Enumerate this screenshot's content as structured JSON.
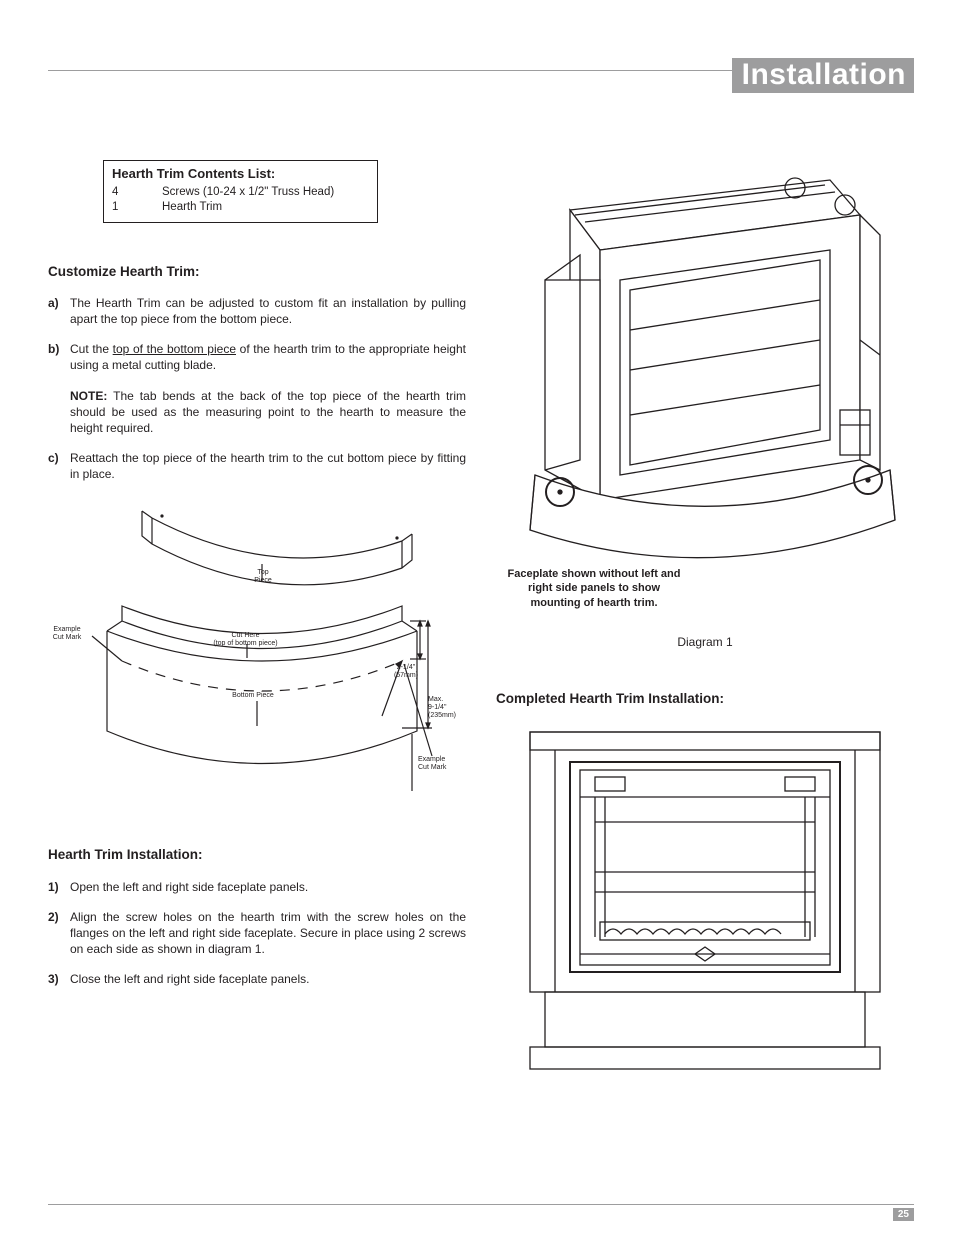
{
  "header": {
    "banner": "Installation",
    "page_number": "25"
  },
  "contents_box": {
    "title": "Hearth Trim Contents List:",
    "rows": [
      {
        "qty": "4",
        "desc": "Screws (10-24 x 1/2\" Truss Head)"
      },
      {
        "qty": "1",
        "desc": "Hearth Trim"
      }
    ]
  },
  "customize": {
    "heading": "Customize Hearth Trim:",
    "items": {
      "a": "The Hearth Trim can be adjusted to custom fit an installation by pulling apart the top piece from the bottom piece.",
      "b_pre": "Cut the ",
      "b_underline": "top of the bottom piece",
      "b_post": " of the hearth trim to the appropriate height using a metal cutting blade.",
      "note_label": "NOTE:",
      "note_text": " The tab bends at the back of the top piece of the hearth trim should be used as the measuring point to the hearth to measure the height required.",
      "c": "Reattach the top piece of the hearth trim to the cut bottom piece by fitting in place."
    }
  },
  "diagram_left": {
    "labels": {
      "top_piece": "Top\nPiece",
      "example_cut_mark_left": "Example\nCut Mark",
      "cut_here": "Cut Here\n(top of bottom piece)",
      "bottom_piece": "Bottom Piece",
      "dim_small": "2-1/4\"\n(57mm)",
      "dim_max": "Max.\n9-1/4\"\n(235mm)",
      "example_cut_mark_right": "Example\nCut Mark"
    }
  },
  "install": {
    "heading": "Hearth Trim Installation:",
    "steps": {
      "1": "Open the left and right side faceplate panels.",
      "2": "Align the screw holes on the hearth trim with the screw holes on the flanges on the left and right side faceplate. Secure in place using 2 screws on each side as shown in diagram 1.",
      "3": "Close the left and right side faceplate panels."
    }
  },
  "diagram1": {
    "caption_side": "Faceplate shown without left and right side panels to show mounting of hearth trim.",
    "caption_bottom": "Diagram 1"
  },
  "completed": {
    "heading": "Completed Hearth Trim Installation:"
  },
  "colors": {
    "banner_bg": "#9d9d9e",
    "banner_fg": "#ffffff",
    "text": "#231f20",
    "rule": "#9d9d9e",
    "stroke": "#231f20"
  }
}
